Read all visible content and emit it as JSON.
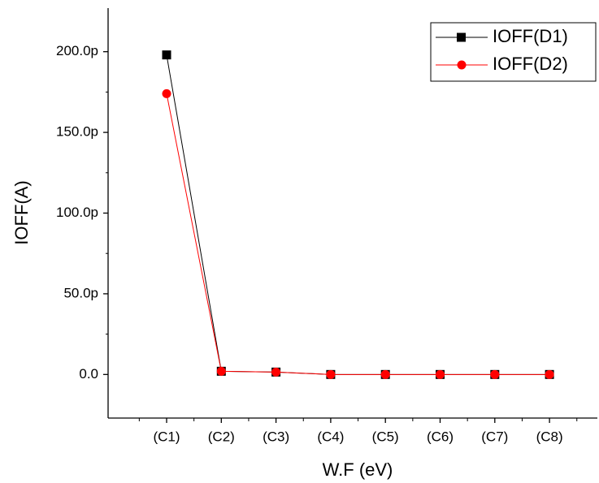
{
  "chart_data": {
    "type": "line",
    "xlabel": "W.F (eV)",
    "ylabel": "IOFF(A)",
    "categories": [
      "(C1)",
      "(C2)",
      "(C3)",
      "(C4)",
      "(C5)",
      "(C6)",
      "(C7)",
      "(C8)"
    ],
    "series": [
      {
        "name": "IOFF(D1)",
        "color": "#000000",
        "marker": "square",
        "values": [
          198,
          2,
          1.5,
          0,
          0,
          0,
          0,
          0
        ]
      },
      {
        "name": "IOFF(D2)",
        "color": "#ff0000",
        "marker": "circle",
        "values": [
          174,
          2,
          1.5,
          0,
          0,
          0,
          0,
          0
        ]
      }
    ],
    "ylim": [
      -27,
      227
    ],
    "yticks": [
      {
        "value": 0,
        "label": "0.0"
      },
      {
        "value": 50,
        "label": "50.0p"
      },
      {
        "value": 100,
        "label": "100.0p"
      },
      {
        "value": 150,
        "label": "150.0p"
      },
      {
        "value": 200,
        "label": "200.0p"
      }
    ],
    "legend": "upper right"
  }
}
